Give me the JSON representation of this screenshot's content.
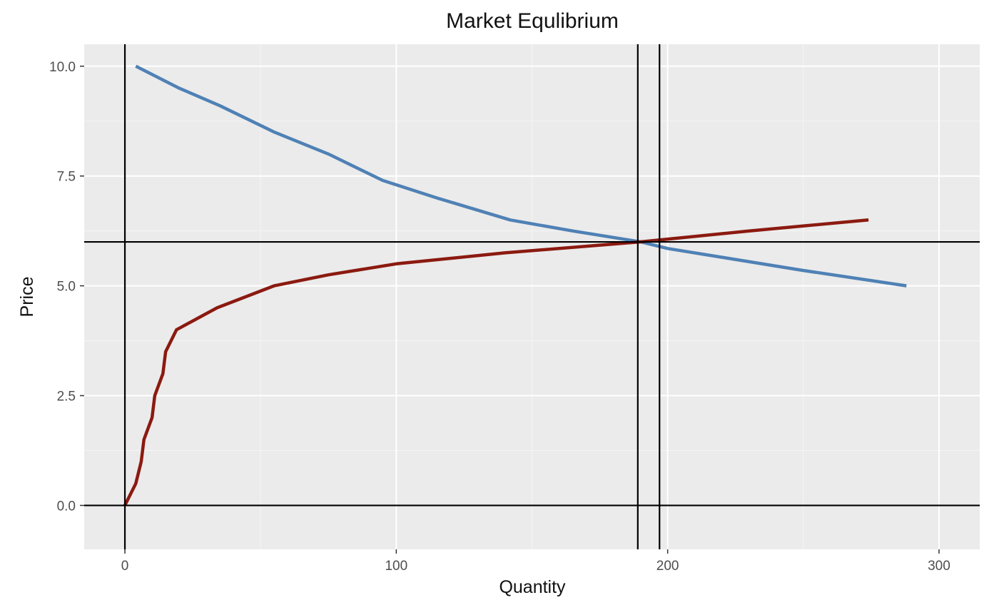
{
  "chart_data": {
    "type": "line",
    "title": "Market Equlibrium",
    "xlabel": "Quantity",
    "ylabel": "Price",
    "xlim": [
      -15,
      315
    ],
    "ylim": [
      -1.0,
      10.5
    ],
    "x_ticks": [
      0,
      100,
      200,
      300
    ],
    "x_tick_labels": [
      "0",
      "100",
      "200",
      "300"
    ],
    "y_ticks": [
      0,
      2.5,
      5,
      7.5,
      10
    ],
    "y_tick_labels": [
      "0.0",
      "2.5",
      "5.0",
      "7.5",
      "10.0"
    ],
    "grid": true,
    "legend": "none",
    "colors": {
      "panel": "#ebebeb",
      "grid_major": "#ffffff",
      "grid_minor": "#f5f5f5",
      "demand": "#4f81b5",
      "supply": "#8b1a10",
      "reference": "#000000"
    },
    "series": [
      {
        "color_key": "demand",
        "points": [
          [
            4,
            10
          ],
          [
            20,
            9.5
          ],
          [
            35,
            9.1
          ],
          [
            55,
            8.5
          ],
          [
            75,
            8
          ],
          [
            95,
            7.4
          ],
          [
            115,
            7
          ],
          [
            142,
            6.5
          ],
          [
            165,
            6.25
          ],
          [
            190,
            6
          ],
          [
            200,
            5.85
          ],
          [
            220,
            5.65
          ],
          [
            250,
            5.35
          ],
          [
            288,
            5
          ]
        ]
      },
      {
        "color_key": "supply",
        "points": [
          [
            0,
            0
          ],
          [
            4,
            0.5
          ],
          [
            6,
            1
          ],
          [
            7,
            1.5
          ],
          [
            10,
            2
          ],
          [
            11,
            2.5
          ],
          [
            14,
            3
          ],
          [
            15,
            3.5
          ],
          [
            19,
            4
          ],
          [
            34,
            4.5
          ],
          [
            55,
            5
          ],
          [
            75,
            5.25
          ],
          [
            100,
            5.5
          ],
          [
            140,
            5.75
          ],
          [
            190,
            6
          ],
          [
            230,
            6.25
          ],
          [
            274,
            6.5
          ]
        ]
      }
    ],
    "reference_lines": {
      "vertical": [
        0,
        189,
        197
      ],
      "horizontal": [
        0,
        6
      ]
    }
  }
}
